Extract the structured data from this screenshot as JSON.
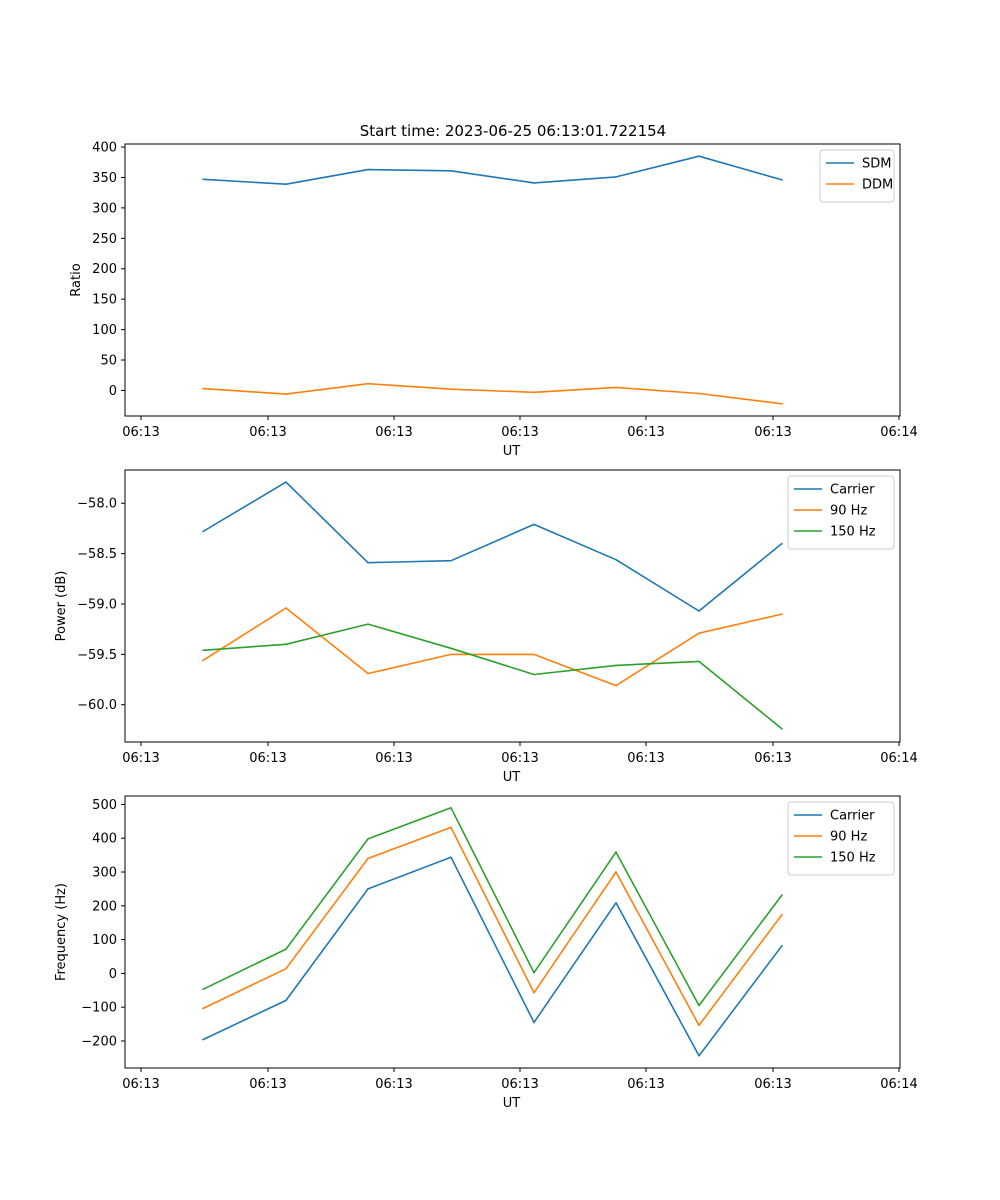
{
  "figure_title": "Start time: 2023-06-25 06:13:01.722154",
  "chart_data": [
    {
      "type": "line",
      "title": "Start time: 2023-06-25 06:13:01.722154",
      "xlabel": "UT",
      "ylabel": "Ratio",
      "x_ticklabels": [
        "06:13",
        "06:13",
        "06:13",
        "06:13",
        "06:13",
        "06:13",
        "06:14"
      ],
      "yticks": [
        0,
        50,
        100,
        150,
        200,
        250,
        300,
        350,
        400
      ],
      "ylim": [
        -42,
        405
      ],
      "legend": "top-right",
      "series": [
        {
          "name": "SDM",
          "color": "#1f77b4",
          "values": [
            347,
            339,
            363,
            361,
            341,
            351,
            385,
            346
          ]
        },
        {
          "name": "DDM",
          "color": "#ff7f0e",
          "values": [
            3,
            -6,
            11,
            2,
            -3,
            5,
            -5,
            -22
          ]
        }
      ]
    },
    {
      "type": "line",
      "xlabel": "UT",
      "ylabel": "Power (dB)",
      "x_ticklabels": [
        "06:13",
        "06:13",
        "06:13",
        "06:13",
        "06:13",
        "06:13",
        "06:14"
      ],
      "yticks": [
        -60.0,
        -59.5,
        -59.0,
        -58.5,
        -58.0
      ],
      "ytick_labels": [
        "−60.0",
        "−59.5",
        "−59.0",
        "−58.5",
        "−58.0"
      ],
      "ylim": [
        -60.37,
        -57.67
      ],
      "legend": "top-right",
      "series": [
        {
          "name": "Carrier",
          "color": "#1f77b4",
          "values": [
            -58.28,
            -57.79,
            -58.59,
            -58.57,
            -58.21,
            -58.56,
            -59.07,
            -58.4
          ]
        },
        {
          "name": "90 Hz",
          "color": "#ff7f0e",
          "values": [
            -59.56,
            -59.04,
            -59.69,
            -59.5,
            -59.5,
            -59.81,
            -59.29,
            -59.1
          ]
        },
        {
          "name": "150 Hz",
          "color": "#2ca02c",
          "values": [
            -59.46,
            -59.4,
            -59.2,
            -59.44,
            -59.7,
            -59.61,
            -59.57,
            -60.24
          ]
        }
      ]
    },
    {
      "type": "line",
      "xlabel": "UT",
      "ylabel": "Frequency (Hz)",
      "x_ticklabels": [
        "06:13",
        "06:13",
        "06:13",
        "06:13",
        "06:13",
        "06:13",
        "06:14"
      ],
      "yticks": [
        -200,
        -100,
        0,
        100,
        200,
        300,
        400,
        500
      ],
      "ytick_labels": [
        "−200",
        "−100",
        "0",
        "100",
        "200",
        "300",
        "400",
        "500"
      ],
      "ylim": [
        -280,
        525
      ],
      "legend": "top-right",
      "series": [
        {
          "name": "Carrier",
          "color": "#1f77b4",
          "values": [
            -196,
            -80,
            250,
            344,
            -145,
            209,
            -244,
            82
          ]
        },
        {
          "name": "90 Hz",
          "color": "#ff7f0e",
          "values": [
            -104,
            14,
            340,
            432,
            -57,
            300,
            -154,
            174
          ]
        },
        {
          "name": "150 Hz",
          "color": "#2ca02c",
          "values": [
            -47,
            72,
            398,
            490,
            2,
            359,
            -95,
            232
          ]
        }
      ]
    }
  ]
}
